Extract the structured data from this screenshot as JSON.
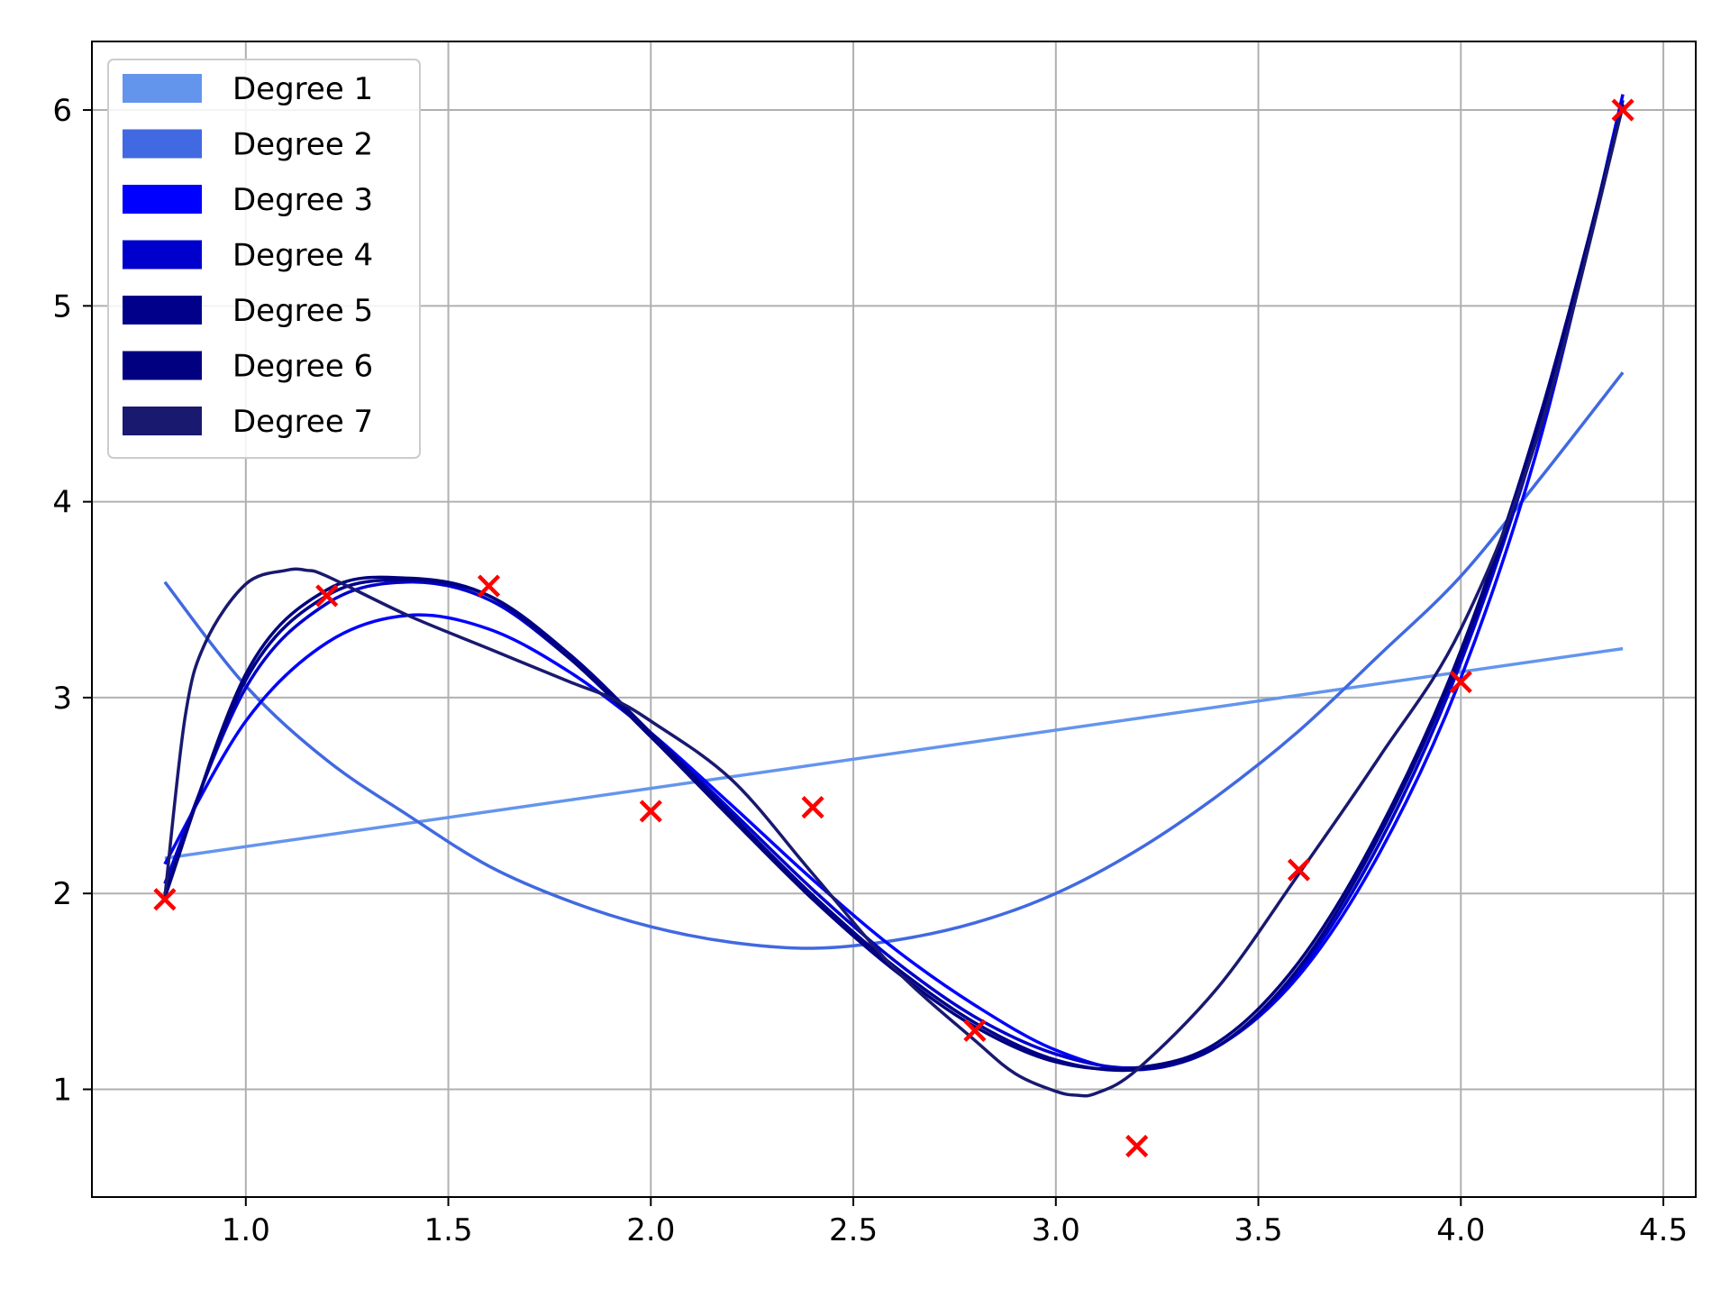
{
  "chart_data": {
    "type": "line",
    "title": "",
    "xlabel": "",
    "ylabel": "",
    "xlim": [
      0.62,
      4.58
    ],
    "ylim": [
      0.45,
      6.35
    ],
    "xticks": [
      1.0,
      1.5,
      2.0,
      2.5,
      3.0,
      3.5,
      4.0,
      4.5
    ],
    "xtick_labels": [
      "1.0",
      "1.5",
      "2.0",
      "2.5",
      "3.0",
      "3.5",
      "4.0",
      "4.5"
    ],
    "yticks": [
      1,
      2,
      3,
      4,
      5,
      6
    ],
    "ytick_labels": [
      "1",
      "2",
      "3",
      "4",
      "5",
      "6"
    ],
    "grid": true,
    "legend_position": "top-left",
    "scatter": {
      "name": "",
      "marker": "x",
      "color": "#ff0000",
      "x": [
        0.8,
        1.2,
        1.6,
        2.0,
        2.4,
        2.8,
        3.2,
        3.6,
        4.0,
        4.4
      ],
      "y": [
        1.97,
        3.52,
        3.57,
        2.42,
        2.44,
        1.3,
        0.71,
        2.12,
        3.08,
        6.0
      ]
    },
    "series": [
      {
        "name": "Degree 1",
        "color": "#6495ed",
        "x": [
          0.8,
          4.4
        ],
        "y": [
          2.18,
          3.25
        ]
      },
      {
        "name": "Degree 2",
        "color": "#4169e1",
        "x": [
          0.8,
          1.0,
          1.2,
          1.4,
          1.6,
          1.8,
          2.0,
          2.2,
          2.4,
          2.6,
          2.8,
          3.0,
          3.2,
          3.4,
          3.6,
          3.8,
          4.0,
          4.2,
          4.4
        ],
        "y": [
          3.59,
          3.06,
          2.68,
          2.4,
          2.14,
          1.96,
          1.83,
          1.75,
          1.72,
          1.76,
          1.85,
          2.0,
          2.22,
          2.5,
          2.83,
          3.22,
          3.62,
          4.13,
          4.66
        ]
      },
      {
        "name": "Degree 3",
        "color": "#0000ff",
        "x": [
          0.8,
          1.0,
          1.2,
          1.4,
          1.6,
          1.8,
          2.0,
          2.2,
          2.4,
          2.6,
          2.8,
          3.0,
          3.2,
          3.4,
          3.6,
          3.8,
          4.0,
          4.2,
          4.4
        ],
        "y": [
          2.15,
          2.88,
          3.28,
          3.42,
          3.35,
          3.13,
          2.82,
          2.45,
          2.07,
          1.72,
          1.43,
          1.2,
          1.1,
          1.22,
          1.58,
          2.21,
          3.1,
          4.35,
          6.08
        ]
      },
      {
        "name": "Degree 4",
        "color": "#0000cd",
        "x": [
          0.8,
          1.0,
          1.2,
          1.4,
          1.6,
          1.8,
          2.0,
          2.2,
          2.4,
          2.6,
          2.8,
          3.0,
          3.2,
          3.4,
          3.6,
          3.8,
          4.0,
          4.2,
          4.4
        ],
        "y": [
          2.05,
          3.05,
          3.48,
          3.59,
          3.5,
          3.2,
          2.82,
          2.42,
          2.02,
          1.66,
          1.37,
          1.18,
          1.11,
          1.22,
          1.6,
          2.26,
          3.18,
          4.42,
          6.05
        ]
      },
      {
        "name": "Degree 5",
        "color": "#00008b",
        "x": [
          0.8,
          1.0,
          1.2,
          1.4,
          1.6,
          1.8,
          2.0,
          2.2,
          2.4,
          2.6,
          2.8,
          3.0,
          3.2,
          3.4,
          3.6,
          3.8,
          4.0,
          4.2,
          4.4
        ],
        "y": [
          2.0,
          3.09,
          3.52,
          3.6,
          3.52,
          3.22,
          2.82,
          2.4,
          1.99,
          1.63,
          1.34,
          1.15,
          1.1,
          1.22,
          1.62,
          2.3,
          3.22,
          4.45,
          6.03
        ]
      },
      {
        "name": "Degree 6",
        "color": "#000080",
        "x": [
          0.8,
          1.0,
          1.2,
          1.4,
          1.6,
          1.8,
          2.0,
          2.2,
          2.4,
          2.6,
          2.8,
          3.0,
          3.2,
          3.4,
          3.6,
          3.8,
          4.0,
          4.2,
          4.4
        ],
        "y": [
          1.98,
          3.12,
          3.55,
          3.61,
          3.52,
          3.2,
          2.8,
          2.38,
          1.97,
          1.61,
          1.32,
          1.14,
          1.11,
          1.24,
          1.65,
          2.33,
          3.24,
          4.47,
          6.02
        ]
      },
      {
        "name": "Degree 7",
        "color": "#191970",
        "x": [
          0.8,
          0.85,
          0.9,
          1.0,
          1.1,
          1.15,
          1.2,
          1.4,
          1.6,
          1.8,
          1.9,
          2.0,
          2.2,
          2.4,
          2.6,
          2.8,
          2.9,
          3.0,
          3.05,
          3.1,
          3.2,
          3.4,
          3.6,
          3.8,
          4.0,
          4.2,
          4.4
        ],
        "y": [
          1.98,
          2.9,
          3.28,
          3.58,
          3.65,
          3.65,
          3.62,
          3.42,
          3.25,
          3.08,
          3.0,
          2.88,
          2.58,
          2.1,
          1.62,
          1.25,
          1.08,
          0.99,
          0.97,
          0.98,
          1.1,
          1.52,
          2.1,
          2.7,
          3.35,
          4.4,
          6.02
        ]
      }
    ]
  }
}
